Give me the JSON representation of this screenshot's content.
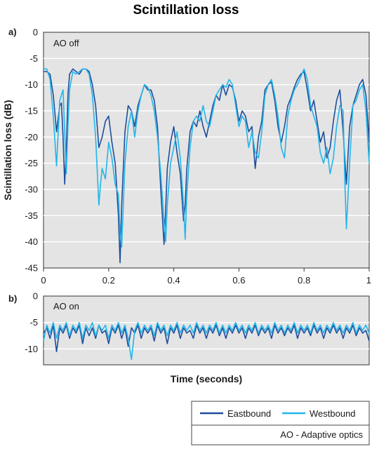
{
  "chart_data": [
    {
      "type": "line",
      "panel_label": "a)",
      "title": "Scintillation loss",
      "annotation": "AO off",
      "xlabel": "",
      "ylabel": "Scintillation loss (dB)",
      "xlim": [
        0,
        1
      ],
      "ylim": [
        -45,
        0
      ],
      "x_ticks": [
        "0",
        "0.2",
        "0.4",
        "0.6",
        "0.8",
        "1"
      ],
      "y_ticks": [
        "0",
        "-5",
        "-10",
        "-15",
        "-20",
        "-25",
        "-30",
        "-35",
        "-40",
        "-45"
      ],
      "grid": true,
      "series": [
        {
          "name": "Eastbound",
          "color": "#1f4e9c",
          "x": [
            0,
            0.01,
            0.02,
            0.03,
            0.04,
            0.05,
            0.055,
            0.06,
            0.065,
            0.07,
            0.075,
            0.08,
            0.09,
            0.1,
            0.11,
            0.12,
            0.13,
            0.14,
            0.15,
            0.16,
            0.17,
            0.175,
            0.18,
            0.19,
            0.2,
            0.21,
            0.22,
            0.23,
            0.235,
            0.24,
            0.25,
            0.26,
            0.27,
            0.28,
            0.29,
            0.3,
            0.31,
            0.32,
            0.33,
            0.34,
            0.35,
            0.36,
            0.37,
            0.375,
            0.38,
            0.39,
            0.4,
            0.41,
            0.42,
            0.43,
            0.435,
            0.44,
            0.45,
            0.46,
            0.47,
            0.48,
            0.49,
            0.5,
            0.51,
            0.52,
            0.53,
            0.54,
            0.55,
            0.56,
            0.57,
            0.58,
            0.59,
            0.6,
            0.61,
            0.62,
            0.63,
            0.64,
            0.65,
            0.66,
            0.67,
            0.68,
            0.69,
            0.7,
            0.71,
            0.72,
            0.73,
            0.74,
            0.75,
            0.76,
            0.77,
            0.78,
            0.79,
            0.8,
            0.81,
            0.82,
            0.83,
            0.84,
            0.85,
            0.86,
            0.87,
            0.88,
            0.89,
            0.9,
            0.91,
            0.92,
            0.93,
            0.94,
            0.95,
            0.96,
            0.97,
            0.98,
            0.99,
            1
          ],
          "y": [
            -7.5,
            -7.5,
            -8,
            -12,
            -19,
            -14,
            -13.5,
            -20,
            -29,
            -22,
            -12,
            -8,
            -7,
            -7.5,
            -8,
            -7,
            -7,
            -7.5,
            -10,
            -14,
            -22,
            -21,
            -20,
            -17,
            -16,
            -21,
            -25,
            -35,
            -44,
            -33,
            -19,
            -14,
            -15,
            -18,
            -14,
            -12,
            -10,
            -11,
            -11,
            -13,
            -18,
            -30,
            -40.5,
            -34,
            -26,
            -21,
            -18,
            -23,
            -27,
            -36,
            -33,
            -26,
            -19,
            -17,
            -18,
            -15,
            -18,
            -20,
            -17,
            -14,
            -12,
            -13,
            -10,
            -12,
            -10,
            -10.5,
            -13,
            -17,
            -15,
            -16,
            -19,
            -18,
            -26,
            -20,
            -17,
            -11,
            -10,
            -9.5,
            -13,
            -18,
            -21,
            -18,
            -14,
            -12.5,
            -10.5,
            -9,
            -8,
            -7.5,
            -11,
            -15,
            -13,
            -17,
            -21,
            -19,
            -24,
            -22,
            -17,
            -13,
            -11,
            -19,
            -29,
            -18,
            -14,
            -12,
            -10,
            -9,
            -12,
            -21
          ]
        },
        {
          "name": "Westbound",
          "color": "#22b6ea",
          "x": [
            0,
            0.01,
            0.02,
            0.03,
            0.04,
            0.05,
            0.06,
            0.065,
            0.07,
            0.075,
            0.08,
            0.09,
            0.1,
            0.11,
            0.12,
            0.13,
            0.14,
            0.15,
            0.16,
            0.17,
            0.175,
            0.18,
            0.19,
            0.2,
            0.21,
            0.22,
            0.23,
            0.235,
            0.24,
            0.25,
            0.26,
            0.27,
            0.28,
            0.29,
            0.3,
            0.31,
            0.32,
            0.33,
            0.34,
            0.35,
            0.36,
            0.37,
            0.375,
            0.38,
            0.39,
            0.4,
            0.41,
            0.42,
            0.43,
            0.435,
            0.44,
            0.45,
            0.46,
            0.47,
            0.48,
            0.49,
            0.5,
            0.51,
            0.52,
            0.53,
            0.54,
            0.55,
            0.56,
            0.57,
            0.58,
            0.59,
            0.6,
            0.61,
            0.62,
            0.63,
            0.64,
            0.65,
            0.66,
            0.67,
            0.68,
            0.69,
            0.7,
            0.71,
            0.72,
            0.73,
            0.74,
            0.75,
            0.76,
            0.77,
            0.78,
            0.79,
            0.8,
            0.81,
            0.82,
            0.83,
            0.84,
            0.85,
            0.86,
            0.87,
            0.88,
            0.89,
            0.9,
            0.91,
            0.92,
            0.925,
            0.93,
            0.94,
            0.95,
            0.96,
            0.97,
            0.98,
            0.99,
            1
          ],
          "y": [
            -7,
            -7,
            -9,
            -16,
            -25.5,
            -13,
            -11,
            -19,
            -27,
            -18,
            -11,
            -7.5,
            -8,
            -7.5,
            -7,
            -7,
            -8,
            -12,
            -20,
            -33,
            -29,
            -26,
            -28,
            -21,
            -24,
            -29,
            -31,
            -38,
            -41,
            -25,
            -18,
            -15,
            -20,
            -15,
            -12,
            -10,
            -10.5,
            -12,
            -15,
            -20,
            -27,
            -36,
            -40,
            -33,
            -25,
            -22,
            -19,
            -24,
            -33,
            -39.5,
            -31,
            -22,
            -17,
            -16,
            -17,
            -14,
            -17,
            -18,
            -15,
            -12,
            -11,
            -10,
            -10.5,
            -9,
            -10,
            -14,
            -18,
            -16,
            -17,
            -22,
            -19,
            -23,
            -24,
            -19,
            -12,
            -10,
            -9,
            -12,
            -16,
            -22,
            -24,
            -16,
            -13,
            -11,
            -10,
            -8.5,
            -7,
            -9,
            -14,
            -16,
            -18,
            -23,
            -25,
            -22,
            -27,
            -24,
            -18,
            -14,
            -15,
            -28,
            -37.5,
            -25,
            -14,
            -13,
            -11,
            -10,
            -15,
            -25
          ]
        }
      ]
    },
    {
      "type": "line",
      "panel_label": "b)",
      "annotation": "AO on",
      "xlabel": "Time (seconds)",
      "ylabel": "",
      "xlim": [
        0,
        1
      ],
      "ylim": [
        -13,
        0
      ],
      "y_ticks": [
        "0",
        "-5",
        "-10"
      ],
      "grid": true,
      "series": [
        {
          "name": "Eastbound",
          "color": "#1f4e9c",
          "x": [
            0,
            0.01,
            0.02,
            0.03,
            0.04,
            0.05,
            0.06,
            0.07,
            0.08,
            0.09,
            0.1,
            0.11,
            0.12,
            0.13,
            0.14,
            0.15,
            0.16,
            0.17,
            0.18,
            0.19,
            0.2,
            0.21,
            0.22,
            0.23,
            0.24,
            0.25,
            0.26,
            0.27,
            0.28,
            0.29,
            0.3,
            0.31,
            0.32,
            0.33,
            0.34,
            0.35,
            0.36,
            0.37,
            0.38,
            0.39,
            0.4,
            0.41,
            0.42,
            0.43,
            0.44,
            0.45,
            0.46,
            0.47,
            0.48,
            0.49,
            0.5,
            0.51,
            0.52,
            0.53,
            0.54,
            0.55,
            0.56,
            0.57,
            0.58,
            0.59,
            0.6,
            0.61,
            0.62,
            0.63,
            0.64,
            0.65,
            0.66,
            0.67,
            0.68,
            0.69,
            0.7,
            0.71,
            0.72,
            0.73,
            0.74,
            0.75,
            0.76,
            0.77,
            0.78,
            0.79,
            0.8,
            0.81,
            0.82,
            0.83,
            0.84,
            0.85,
            0.86,
            0.87,
            0.88,
            0.89,
            0.9,
            0.91,
            0.92,
            0.93,
            0.94,
            0.95,
            0.96,
            0.97,
            0.98,
            0.99,
            1
          ],
          "y": [
            -7,
            -6,
            -8,
            -5.5,
            -10.5,
            -6,
            -7,
            -5.5,
            -8,
            -6,
            -7,
            -5.5,
            -9,
            -6,
            -7.5,
            -6,
            -8,
            -5.5,
            -7,
            -6.5,
            -9,
            -6,
            -7,
            -5.5,
            -8,
            -6,
            -9.5,
            -6,
            -7,
            -5.5,
            -8,
            -6,
            -7,
            -6,
            -8.5,
            -5.5,
            -7,
            -6,
            -9,
            -6,
            -7,
            -5.5,
            -8,
            -6,
            -7,
            -6.5,
            -8,
            -5.5,
            -7,
            -6,
            -8,
            -6,
            -7,
            -5.5,
            -7.5,
            -6,
            -8,
            -6,
            -7,
            -5.5,
            -7,
            -6,
            -8,
            -6,
            -7,
            -5.5,
            -7.5,
            -6,
            -7,
            -6,
            -8,
            -5.5,
            -7,
            -6,
            -7.5,
            -6,
            -7,
            -5.5,
            -8,
            -6,
            -7,
            -6,
            -7.5,
            -5.5,
            -7,
            -6,
            -8,
            -6,
            -7,
            -5.5,
            -7,
            -6,
            -8,
            -6,
            -7,
            -5.5,
            -7.5,
            -6,
            -7,
            -6.5,
            -8.5
          ]
        },
        {
          "name": "Westbound",
          "color": "#22b6ea",
          "x": [
            0,
            0.01,
            0.02,
            0.03,
            0.04,
            0.05,
            0.06,
            0.07,
            0.08,
            0.09,
            0.1,
            0.11,
            0.12,
            0.13,
            0.14,
            0.15,
            0.16,
            0.17,
            0.18,
            0.19,
            0.2,
            0.21,
            0.22,
            0.23,
            0.24,
            0.25,
            0.26,
            0.27,
            0.28,
            0.29,
            0.3,
            0.31,
            0.32,
            0.33,
            0.34,
            0.35,
            0.36,
            0.37,
            0.38,
            0.39,
            0.4,
            0.41,
            0.42,
            0.43,
            0.44,
            0.45,
            0.46,
            0.47,
            0.48,
            0.49,
            0.5,
            0.51,
            0.52,
            0.53,
            0.54,
            0.55,
            0.56,
            0.57,
            0.58,
            0.59,
            0.6,
            0.61,
            0.62,
            0.63,
            0.64,
            0.65,
            0.66,
            0.67,
            0.68,
            0.69,
            0.7,
            0.71,
            0.72,
            0.73,
            0.74,
            0.75,
            0.76,
            0.77,
            0.78,
            0.79,
            0.8,
            0.81,
            0.82,
            0.83,
            0.84,
            0.85,
            0.86,
            0.87,
            0.88,
            0.89,
            0.9,
            0.91,
            0.92,
            0.93,
            0.94,
            0.95,
            0.96,
            0.97,
            0.98,
            0.99,
            1
          ],
          "y": [
            -8.5,
            -5.5,
            -7,
            -5,
            -8,
            -5.5,
            -6.5,
            -5,
            -7.5,
            -5.5,
            -6.5,
            -5,
            -8,
            -5.5,
            -6.5,
            -5,
            -7.5,
            -5.5,
            -6.5,
            -5.5,
            -8,
            -5.5,
            -6.5,
            -5,
            -7,
            -5.5,
            -8,
            -12,
            -6.5,
            -5,
            -7,
            -5.5,
            -6.5,
            -5.5,
            -7.5,
            -5,
            -6.5,
            -5.5,
            -7.5,
            -5.5,
            -6.5,
            -5,
            -7,
            -5.5,
            -6.5,
            -5.5,
            -7,
            -5,
            -6.5,
            -5.5,
            -7,
            -5.5,
            -6.5,
            -5,
            -7,
            -5.5,
            -7,
            -5.5,
            -6.5,
            -5,
            -6.5,
            -5.5,
            -7,
            -5.5,
            -6.5,
            -5,
            -7,
            -5.5,
            -6.5,
            -5.5,
            -7,
            -5,
            -6.5,
            -5.5,
            -7,
            -5.5,
            -6.5,
            -5,
            -7,
            -5.5,
            -6.5,
            -5.5,
            -7,
            -5,
            -6.5,
            -5.5,
            -7,
            -5.5,
            -6.5,
            -5,
            -6.5,
            -5.5,
            -7,
            -5.5,
            -6.5,
            -5,
            -7,
            -5.5,
            -6.5,
            -5.5,
            -7
          ]
        }
      ]
    }
  ],
  "legend": {
    "placement": "bottom-right",
    "eastbound_label": "Eastbound",
    "westbound_label": "Westbound",
    "note": "AO - Adaptive optics"
  }
}
